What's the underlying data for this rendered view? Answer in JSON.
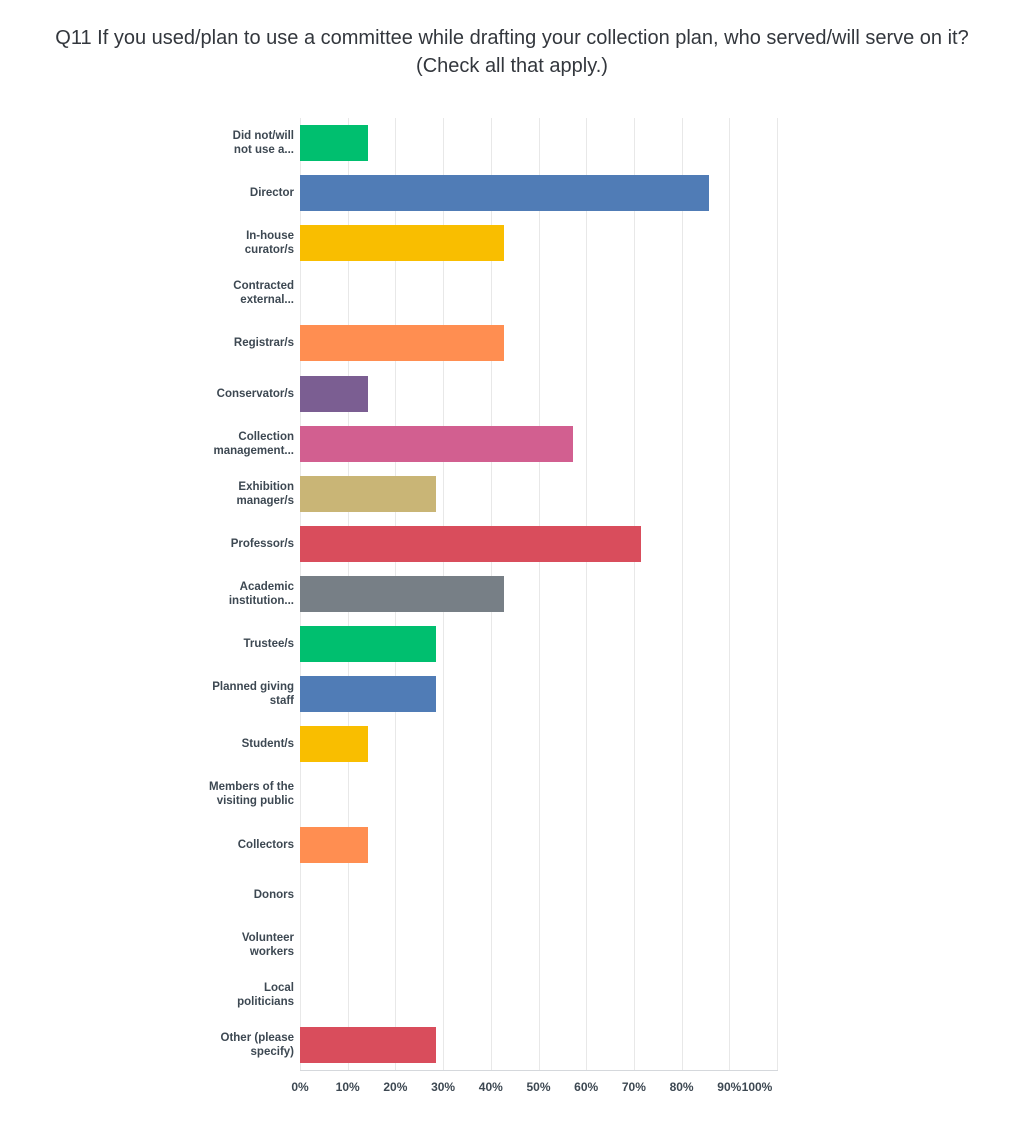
{
  "page": {
    "background": "#FFFFFF"
  },
  "title": {
    "text": "Q11 If you used/plan to use a committee while drafting your collection plan, who served/will serve on it? (Check all that apply.)",
    "color": "#33373D"
  },
  "chart_data": {
    "type": "bar",
    "orientation": "horizontal",
    "title": "Q11 If you used/plan to use a committee while drafting your collection plan, who served/will serve on it? (Check all that apply.)",
    "categories": [
      "Did not/will\nnot use a...",
      "Director",
      "In-house\ncurator/s",
      "Contracted\nexternal...",
      "Registrar/s",
      "Conservator/s",
      "Collection\nmanagement...",
      "Exhibition\nmanager/s",
      "Professor/s",
      "Academic\ninstitution...",
      "Trustee/s",
      "Planned giving\nstaff",
      "Student/s",
      "Members of the\nvisiting public",
      "Collectors",
      "Donors",
      "Volunteer\nworkers",
      "Local\npoliticians",
      "Other (please\nspecify)"
    ],
    "values": [
      14.29,
      85.71,
      42.86,
      0,
      42.86,
      14.29,
      57.14,
      28.57,
      71.43,
      42.86,
      28.57,
      28.57,
      14.29,
      0,
      14.29,
      0,
      0,
      0,
      28.57
    ],
    "bar_colors": [
      "#00BF6F",
      "#507CB6",
      "#F9BE00",
      "#00B6CB",
      "#FF8E51",
      "#7B5E92",
      "#D25F90",
      "#C9B576",
      "#D94D5C",
      "#777F86",
      "#00BF6F",
      "#507CB6",
      "#F9BE00",
      "#00B6CB",
      "#FF8E51",
      "#7B5E92",
      "#D25F90",
      "#C9B576",
      "#D94D5C"
    ],
    "xlabel": "",
    "ylabel": "",
    "xlim": [
      0,
      100
    ],
    "x_tick_labels": [
      "0%",
      "10%",
      "20%",
      "30%",
      "40%",
      "50%",
      "60%",
      "70%",
      "80%",
      "90%",
      "100%"
    ],
    "x_tick_values": [
      0,
      10,
      20,
      30,
      40,
      50,
      60,
      70,
      80,
      90,
      100
    ],
    "grid": true,
    "legend": false,
    "styles": {
      "label_color": "#3D4852",
      "tick_color": "#3D4852",
      "grid_color": "#E8E8E8",
      "axis_line_color": "#D5D8DC"
    }
  }
}
